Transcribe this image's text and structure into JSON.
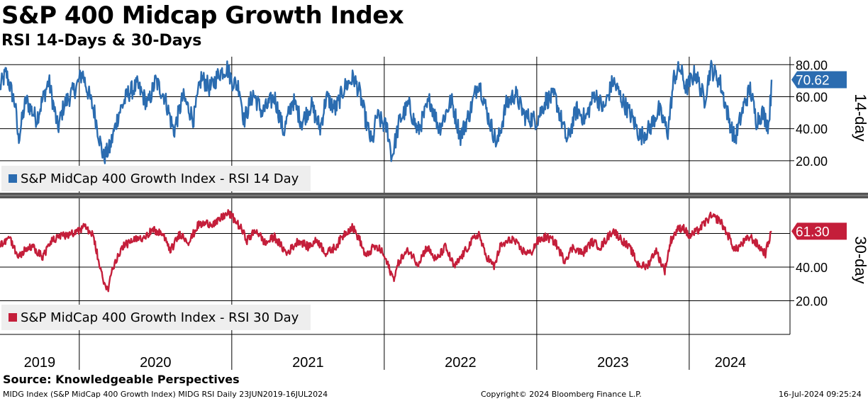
{
  "title": "S&P 400 Midcap Growth Index",
  "subtitle": "RSI 14-Days & 30-Days",
  "footer": {
    "source": "Source: Knowledgeable Perspectives",
    "ticker_info": "MIDG Index (S&P MidCap 400 Growth Index) MIDG RSI  Daily 23JUN2019-16JUL2024",
    "copyright": "Copyright© 2024 Bloomberg Finance L.P.",
    "timestamp": "16-Jul-2024 09:25:24"
  },
  "colors": {
    "rsi14": "#2b6cb0",
    "rsi30": "#c41e3a",
    "grid": "#000000"
  },
  "chart_data": [
    {
      "type": "line",
      "panel": "top",
      "series_name": "S&P MidCap 400 Growth Index - RSI 14 Day",
      "axis_title": "14-day",
      "ylim": [
        0,
        85
      ],
      "yticks": [
        20,
        40,
        60,
        80
      ],
      "ytick_labels": [
        "20.00",
        "40.00",
        "60.00",
        "80.00"
      ],
      "last_value": 70.62,
      "last_label": "70.62",
      "x_range": [
        2019.48,
        2024.54
      ],
      "keypoints": [
        [
          2019.48,
          66
        ],
        [
          2019.52,
          75
        ],
        [
          2019.58,
          55
        ],
        [
          2019.6,
          33
        ],
        [
          2019.65,
          58
        ],
        [
          2019.72,
          46
        ],
        [
          2019.8,
          70
        ],
        [
          2019.86,
          40
        ],
        [
          2019.9,
          55
        ],
        [
          2019.98,
          66
        ],
        [
          2020.02,
          75
        ],
        [
          2020.06,
          62
        ],
        [
          2020.1,
          50
        ],
        [
          2020.14,
          30
        ],
        [
          2020.16,
          22
        ],
        [
          2020.2,
          28
        ],
        [
          2020.26,
          50
        ],
        [
          2020.32,
          62
        ],
        [
          2020.38,
          67
        ],
        [
          2020.45,
          55
        ],
        [
          2020.5,
          70
        ],
        [
          2020.56,
          60
        ],
        [
          2020.62,
          38
        ],
        [
          2020.68,
          60
        ],
        [
          2020.75,
          46
        ],
        [
          2020.8,
          72
        ],
        [
          2020.86,
          65
        ],
        [
          2020.92,
          75
        ],
        [
          2020.97,
          78
        ],
        [
          2021.0,
          70
        ],
        [
          2021.05,
          66
        ],
        [
          2021.08,
          45
        ],
        [
          2021.14,
          62
        ],
        [
          2021.2,
          50
        ],
        [
          2021.28,
          60
        ],
        [
          2021.34,
          38
        ],
        [
          2021.4,
          58
        ],
        [
          2021.46,
          44
        ],
        [
          2021.52,
          55
        ],
        [
          2021.58,
          40
        ],
        [
          2021.62,
          60
        ],
        [
          2021.68,
          52
        ],
        [
          2021.74,
          66
        ],
        [
          2021.8,
          72
        ],
        [
          2021.84,
          62
        ],
        [
          2021.88,
          45
        ],
        [
          2021.92,
          30
        ],
        [
          2021.95,
          48
        ],
        [
          2022.02,
          40
        ],
        [
          2022.05,
          22
        ],
        [
          2022.1,
          45
        ],
        [
          2022.16,
          55
        ],
        [
          2022.22,
          38
        ],
        [
          2022.3,
          58
        ],
        [
          2022.36,
          40
        ],
        [
          2022.44,
          58
        ],
        [
          2022.5,
          35
        ],
        [
          2022.56,
          50
        ],
        [
          2022.62,
          70
        ],
        [
          2022.68,
          48
        ],
        [
          2022.74,
          30
        ],
        [
          2022.8,
          55
        ],
        [
          2022.86,
          62
        ],
        [
          2022.92,
          48
        ],
        [
          2023.0,
          45
        ],
        [
          2023.06,
          58
        ],
        [
          2023.12,
          60
        ],
        [
          2023.2,
          32
        ],
        [
          2023.26,
          52
        ],
        [
          2023.32,
          46
        ],
        [
          2023.38,
          62
        ],
        [
          2023.44,
          52
        ],
        [
          2023.5,
          70
        ],
        [
          2023.56,
          58
        ],
        [
          2023.62,
          48
        ],
        [
          2023.68,
          35
        ],
        [
          2023.74,
          40
        ],
        [
          2023.8,
          52
        ],
        [
          2023.86,
          38
        ],
        [
          2023.9,
          72
        ],
        [
          2023.94,
          78
        ],
        [
          2023.98,
          65
        ],
        [
          2024.04,
          75
        ],
        [
          2024.1,
          58
        ],
        [
          2024.14,
          78
        ],
        [
          2024.2,
          70
        ],
        [
          2024.26,
          46
        ],
        [
          2024.3,
          33
        ],
        [
          2024.36,
          55
        ],
        [
          2024.4,
          65
        ],
        [
          2024.44,
          45
        ],
        [
          2024.48,
          50
        ],
        [
          2024.52,
          42
        ],
        [
          2024.535,
          60
        ],
        [
          2024.54,
          70.62
        ]
      ]
    },
    {
      "type": "line",
      "panel": "bottom",
      "series_name": "S&P MidCap 400 Growth Index - RSI 30 Day",
      "axis_title": "30-day",
      "ylim": [
        0,
        80
      ],
      "yticks": [
        20,
        40
      ],
      "ytick_labels": [
        "20.00",
        "40.00"
      ],
      "last_value": 61.3,
      "last_label": "61.30",
      "x_range": [
        2019.48,
        2024.54
      ],
      "keypoints": [
        [
          2019.48,
          53
        ],
        [
          2019.54,
          58
        ],
        [
          2019.6,
          46
        ],
        [
          2019.64,
          50
        ],
        [
          2019.7,
          52
        ],
        [
          2019.76,
          46
        ],
        [
          2019.82,
          56
        ],
        [
          2019.88,
          58
        ],
        [
          2019.94,
          60
        ],
        [
          2020.0,
          62
        ],
        [
          2020.04,
          64
        ],
        [
          2020.08,
          60
        ],
        [
          2020.1,
          55
        ],
        [
          2020.14,
          38
        ],
        [
          2020.16,
          30
        ],
        [
          2020.19,
          28
        ],
        [
          2020.22,
          40
        ],
        [
          2020.28,
          52
        ],
        [
          2020.34,
          55
        ],
        [
          2020.42,
          58
        ],
        [
          2020.48,
          62
        ],
        [
          2020.54,
          60
        ],
        [
          2020.6,
          50
        ],
        [
          2020.66,
          60
        ],
        [
          2020.72,
          55
        ],
        [
          2020.78,
          65
        ],
        [
          2020.84,
          66
        ],
        [
          2020.9,
          66
        ],
        [
          2020.94,
          70
        ],
        [
          2020.98,
          72
        ],
        [
          2021.02,
          68
        ],
        [
          2021.06,
          63
        ],
        [
          2021.1,
          56
        ],
        [
          2021.16,
          62
        ],
        [
          2021.22,
          54
        ],
        [
          2021.28,
          58
        ],
        [
          2021.36,
          48
        ],
        [
          2021.44,
          56
        ],
        [
          2021.5,
          52
        ],
        [
          2021.56,
          56
        ],
        [
          2021.62,
          48
        ],
        [
          2021.68,
          52
        ],
        [
          2021.74,
          60
        ],
        [
          2021.79,
          64
        ],
        [
          2021.84,
          56
        ],
        [
          2021.88,
          46
        ],
        [
          2021.93,
          52
        ],
        [
          2021.98,
          50
        ],
        [
          2022.02,
          42
        ],
        [
          2022.06,
          33
        ],
        [
          2022.1,
          44
        ],
        [
          2022.16,
          50
        ],
        [
          2022.22,
          42
        ],
        [
          2022.28,
          52
        ],
        [
          2022.34,
          44
        ],
        [
          2022.4,
          52
        ],
        [
          2022.46,
          40
        ],
        [
          2022.52,
          48
        ],
        [
          2022.58,
          56
        ],
        [
          2022.62,
          60
        ],
        [
          2022.66,
          48
        ],
        [
          2022.72,
          40
        ],
        [
          2022.76,
          52
        ],
        [
          2022.84,
          57
        ],
        [
          2022.9,
          50
        ],
        [
          2022.96,
          48
        ],
        [
          2023.0,
          55
        ],
        [
          2023.06,
          58
        ],
        [
          2023.12,
          55
        ],
        [
          2023.18,
          44
        ],
        [
          2023.24,
          52
        ],
        [
          2023.3,
          48
        ],
        [
          2023.36,
          55
        ],
        [
          2023.42,
          52
        ],
        [
          2023.5,
          62
        ],
        [
          2023.56,
          56
        ],
        [
          2023.62,
          50
        ],
        [
          2023.66,
          42
        ],
        [
          2023.72,
          40
        ],
        [
          2023.78,
          50
        ],
        [
          2023.84,
          38
        ],
        [
          2023.88,
          56
        ],
        [
          2023.92,
          62
        ],
        [
          2023.96,
          64
        ],
        [
          2024.0,
          58
        ],
        [
          2024.06,
          62
        ],
        [
          2024.1,
          66
        ],
        [
          2024.14,
          70
        ],
        [
          2024.2,
          68
        ],
        [
          2024.26,
          58
        ],
        [
          2024.3,
          50
        ],
        [
          2024.36,
          55
        ],
        [
          2024.4,
          58
        ],
        [
          2024.46,
          52
        ],
        [
          2024.5,
          48
        ],
        [
          2024.52,
          55
        ],
        [
          2024.54,
          61.3
        ]
      ]
    }
  ],
  "x_axis": {
    "year_labels": [
      "2019",
      "2020",
      "2021",
      "2022",
      "2023",
      "2024"
    ],
    "year_centers": [
      2019.74,
      2020.5,
      2021.5,
      2022.5,
      2023.5,
      2024.27
    ],
    "boundaries": [
      2020.0,
      2021.0,
      2022.0,
      2023.0,
      2024.0
    ]
  }
}
